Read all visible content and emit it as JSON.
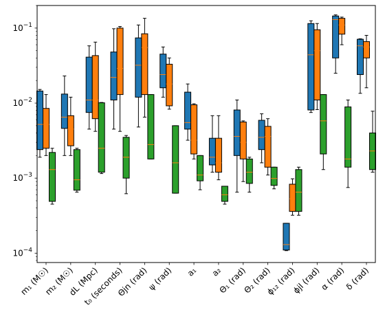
{
  "chart_data": {
    "type": "box",
    "yscale": "log",
    "ylim": [
      7.5e-05,
      0.2
    ],
    "y_ticks": [
      {
        "value": 0.0001,
        "label": "10",
        "exp": "−4"
      },
      {
        "value": 0.001,
        "label": "10",
        "exp": "−3"
      },
      {
        "value": 0.01,
        "label": "10",
        "exp": "−2"
      },
      {
        "value": 0.1,
        "label": "10",
        "exp": "−1"
      }
    ],
    "categories": [
      "m₁ (M☉)",
      "m₂ (M☉)",
      "dL (Mpc)",
      "t₀ (seconds)",
      "Θjn (rad)",
      "ψ (rad)",
      "a₁",
      "a₂",
      "Θ₁ (rad)",
      "Θ₂ (rad)",
      "ϕ₁₂ (rad)",
      "ϕjl (rad)",
      "α (rad)",
      "δ (rad)"
    ],
    "series": [
      {
        "color": "#1f77b4",
        "boxes": [
          [
            0.0019,
            0.0024,
            0.0052,
            0.0145,
            0.0152
          ],
          [
            0.002,
            0.0046,
            0.0065,
            0.0132,
            0.023
          ],
          [
            0.0045,
            0.0075,
            0.011,
            0.041,
            0.058
          ],
          [
            0.0045,
            0.011,
            0.022,
            0.048,
            0.098
          ],
          [
            0.0048,
            0.012,
            0.032,
            0.074,
            0.11
          ],
          [
            0.012,
            0.016,
            0.024,
            0.045,
            0.056
          ],
          [
            0.0032,
            0.0045,
            0.0055,
            0.014,
            0.018
          ],
          [
            0.0012,
            0.0015,
            0.0019,
            0.0034,
            0.0068
          ],
          [
            0.00065,
            0.002,
            0.0036,
            0.0081,
            0.011
          ],
          [
            0.0016,
            0.0024,
            0.0035,
            0.0059,
            0.0072
          ],
          [
            0.000108,
            0.00011,
            0.00013,
            0.00025,
            0.00025
          ],
          [
            0.0075,
            0.0081,
            0.044,
            0.115,
            0.125
          ],
          [
            0.025,
            0.04,
            0.13,
            0.145,
            0.15
          ],
          [
            0.0135,
            0.024,
            0.058,
            0.071,
            0.072
          ]
        ]
      },
      {
        "color": "#ff7f0e",
        "boxes": [
          [
            0.002,
            0.0025,
            0.0052,
            0.0085,
            0.013
          ],
          [
            0.002,
            0.0027,
            0.0045,
            0.0068,
            0.012
          ],
          [
            0.0042,
            0.0062,
            0.011,
            0.043,
            0.065
          ],
          [
            0.0042,
            0.013,
            0.029,
            0.1,
            0.105
          ],
          [
            0.0065,
            0.013,
            0.055,
            0.084,
            0.135
          ],
          [
            0.0083,
            0.0092,
            0.018,
            0.033,
            0.04
          ],
          [
            0.0018,
            0.0021,
            0.0032,
            0.0095,
            0.0098
          ],
          [
            0.00095,
            0.0012,
            0.0016,
            0.0034,
            0.0068
          ],
          [
            0.0009,
            0.0018,
            0.003,
            0.0056,
            0.0058
          ],
          [
            0.0011,
            0.0014,
            0.0036,
            0.0049,
            0.0062
          ],
          [
            0.00032,
            0.00036,
            0.00053,
            0.00083,
            0.00098
          ],
          [
            0.0082,
            0.011,
            0.05,
            0.095,
            0.115
          ],
          [
            0.06,
            0.083,
            0.11,
            0.135,
            0.14
          ],
          [
            0.016,
            0.04,
            0.056,
            0.066,
            0.08
          ]
        ]
      },
      {
        "color": "#2ca02c",
        "boxes": [
          [
            0.00045,
            0.00049,
            0.0013,
            0.0022,
            0.0025
          ],
          [
            0.00065,
            0.00069,
            0.00095,
            0.0024,
            0.0025
          ],
          [
            0.00115,
            0.0012,
            0.0025,
            0.0101,
            0.0102
          ],
          [
            0.00062,
            0.001,
            0.0019,
            0.0035,
            0.0037
          ],
          [
            0.0018,
            0.0018,
            0.0028,
            0.013,
            0.013
          ],
          [
            0.00063,
            0.00063,
            0.0016,
            0.005,
            0.005
          ],
          [
            0.0007,
            0.00092,
            0.0011,
            0.002,
            0.002
          ],
          [
            0.00045,
            0.00049,
            0.0006,
            0.00078,
            0.00078
          ],
          [
            0.00065,
            0.00085,
            0.0012,
            0.0018,
            0.0019
          ],
          [
            0.00072,
            0.0008,
            0.00099,
            0.0014,
            0.0014
          ],
          [
            0.00032,
            0.00036,
            0.00065,
            0.0013,
            0.0014
          ],
          [
            0.0013,
            0.0021,
            0.0058,
            0.013,
            0.013
          ],
          [
            0.00075,
            0.0014,
            0.0018,
            0.0089,
            0.011
          ],
          [
            0.0012,
            0.0013,
            0.0023,
            0.004,
            0.0078
          ]
        ]
      }
    ],
    "title": "",
    "xlabel": "",
    "ylabel": ""
  }
}
